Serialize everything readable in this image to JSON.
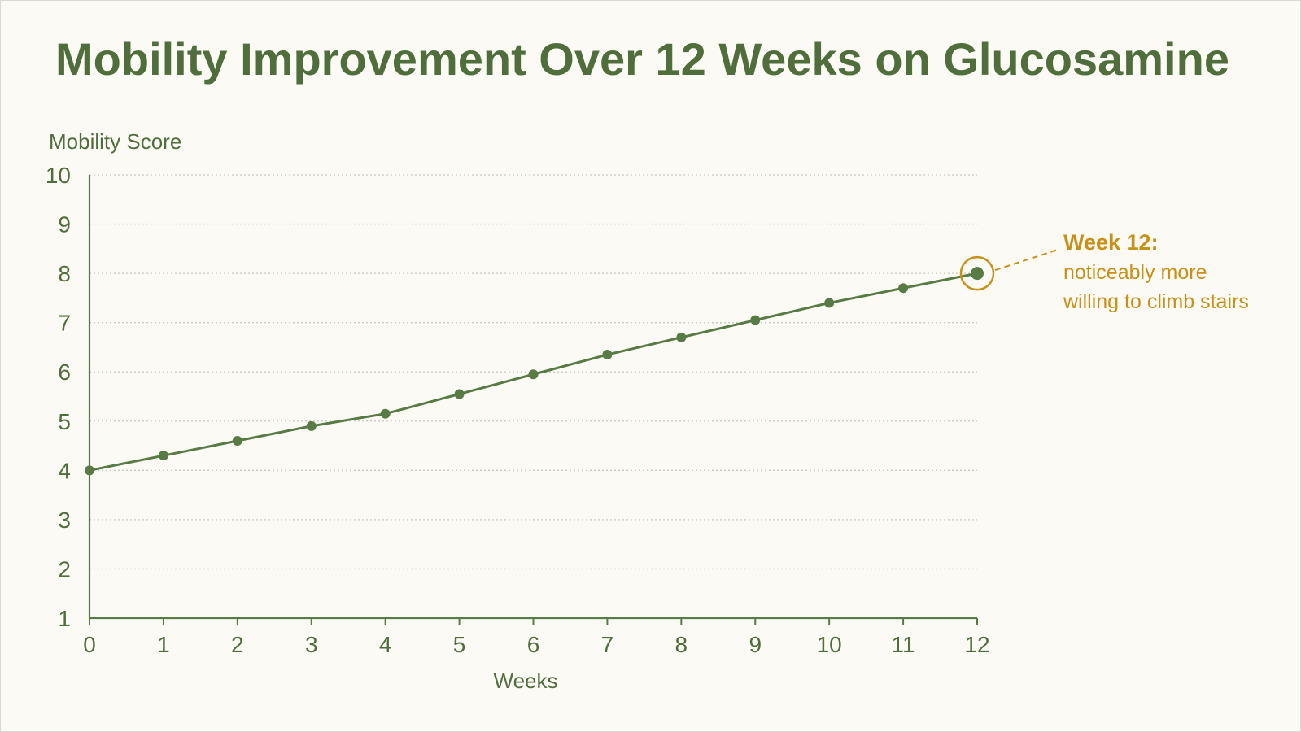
{
  "chart_data": {
    "type": "line",
    "title": "Mobility Improvement Over 12 Weeks on Glucosamine",
    "xlabel": "Weeks",
    "ylabel": "Mobility Score",
    "x": [
      0,
      1,
      2,
      3,
      4,
      5,
      6,
      7,
      8,
      9,
      10,
      11,
      12
    ],
    "series": [
      {
        "values": [
          4.0,
          4.3,
          4.6,
          4.9,
          5.15,
          5.55,
          5.95,
          6.35,
          6.7,
          7.05,
          7.4,
          7.7,
          8.0
        ]
      }
    ],
    "xlim": [
      0,
      12
    ],
    "ylim": [
      1,
      10
    ],
    "yticks": [
      "1",
      "2",
      "3",
      "4",
      "5",
      "6",
      "7",
      "8",
      "9",
      "10"
    ],
    "xticks": [
      "0",
      "1",
      "2",
      "3",
      "4",
      "5",
      "6",
      "7",
      "8",
      "9",
      "10",
      "11",
      "12"
    ],
    "grid": "horizontal dotted",
    "colors": {
      "line": "#587a45",
      "axis": "#587a45",
      "text": "#4f6e3b",
      "grid": "#c9c9c0",
      "annotation": "#c89016",
      "background": "#fbfaf4"
    },
    "annotation": {
      "x": 12,
      "y": 8.0,
      "title": "Week 12:",
      "lines": [
        "noticeably more",
        "willing to climb stairs"
      ]
    }
  }
}
